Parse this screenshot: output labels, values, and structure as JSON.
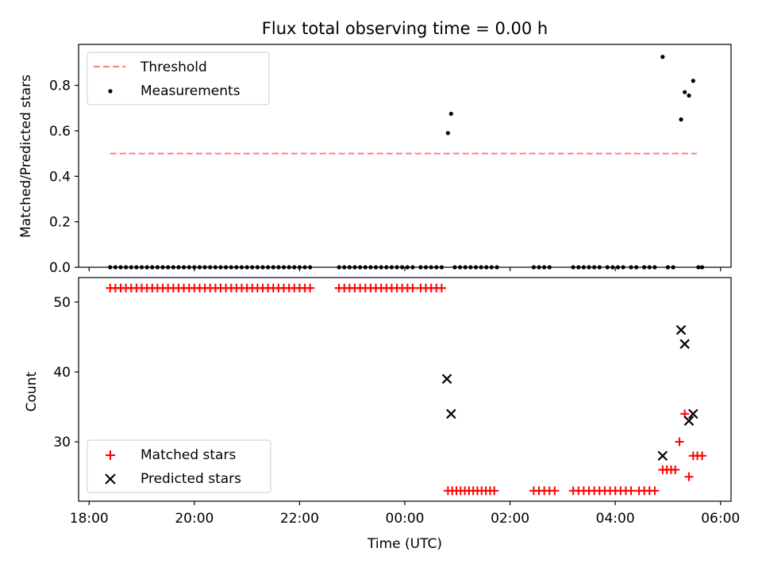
{
  "figure": {
    "title": "Flux total observing time = 0.00 h",
    "xlabel": "Time (UTC)",
    "xticks": [
      "18:00",
      "20:00",
      "22:00",
      "00:00",
      "02:00",
      "04:00",
      "06:00"
    ]
  },
  "colors": {
    "threshold": "#ff7f7f",
    "measurement": "#000000",
    "matched": "#ff0000",
    "predicted": "#000000"
  },
  "chart_data": [
    {
      "type": "scatter",
      "panel": "top",
      "x_unit": "hours since 18:00 UTC",
      "xlim": [
        -0.2,
        12.2
      ],
      "ylabel": "Matched/Predicted stars",
      "ylim": [
        0,
        0.98
      ],
      "yticks": [
        "0.0",
        "0.2",
        "0.4",
        "0.6",
        "0.8"
      ],
      "legend_position": "upper-left",
      "series": [
        {
          "name": "Threshold",
          "kind": "dashed-line",
          "x": [
            0.4,
            11.55
          ],
          "y": [
            0.5,
            0.5
          ]
        },
        {
          "name": "Measurements",
          "kind": "points",
          "x": [
            0.4,
            0.5,
            0.6,
            0.7,
            0.8,
            0.9,
            1.0,
            1.1,
            1.2,
            1.3,
            1.4,
            1.5,
            1.6,
            1.7,
            1.8,
            1.9,
            2.0,
            2.1,
            2.2,
            2.3,
            2.4,
            2.5,
            2.6,
            2.7,
            2.8,
            2.9,
            3.0,
            3.1,
            3.2,
            3.3,
            3.4,
            3.5,
            3.6,
            3.7,
            3.8,
            3.9,
            4.0,
            4.1,
            4.2,
            4.75,
            4.85,
            4.95,
            5.05,
            5.15,
            5.25,
            5.35,
            5.45,
            5.55,
            5.65,
            5.75,
            5.85,
            5.95,
            6.05,
            6.15,
            6.3,
            6.4,
            6.5,
            6.6,
            6.7,
            6.82,
            6.88,
            6.95,
            7.05,
            7.15,
            7.25,
            7.35,
            7.45,
            7.55,
            7.65,
            7.75,
            8.45,
            8.55,
            8.65,
            8.75,
            9.2,
            9.3,
            9.4,
            9.5,
            9.6,
            9.7,
            9.85,
            9.95,
            10.05,
            10.15,
            10.3,
            10.4,
            10.55,
            10.65,
            10.75,
            10.9,
            11.0,
            11.1,
            11.25,
            11.32,
            11.4,
            11.48,
            11.58,
            11.65
          ],
          "y": [
            0,
            0,
            0,
            0,
            0,
            0,
            0,
            0,
            0,
            0,
            0,
            0,
            0,
            0,
            0,
            0,
            0,
            0,
            0,
            0,
            0,
            0,
            0,
            0,
            0,
            0,
            0,
            0,
            0,
            0,
            0,
            0,
            0,
            0,
            0,
            0,
            0,
            0,
            0,
            0,
            0,
            0,
            0,
            0,
            0,
            0,
            0,
            0,
            0,
            0,
            0,
            0,
            0,
            0,
            0,
            0,
            0,
            0,
            0,
            0.59,
            0.675,
            0,
            0,
            0,
            0,
            0,
            0,
            0,
            0,
            0,
            0,
            0,
            0,
            0,
            0,
            0,
            0,
            0,
            0,
            0,
            0,
            0,
            0,
            0,
            0,
            0,
            0,
            0,
            0,
            0.925,
            0,
            0,
            0.65,
            0.77,
            0.755,
            0.82,
            0,
            0
          ]
        }
      ]
    },
    {
      "type": "scatter",
      "panel": "bottom",
      "x_unit": "hours since 18:00 UTC",
      "xlim": [
        -0.2,
        12.2
      ],
      "ylabel": "Count",
      "ylim": [
        21.5,
        53.5
      ],
      "yticks": [
        "30",
        "40",
        "50"
      ],
      "legend_position": "lower-left",
      "series": [
        {
          "name": "Matched stars",
          "marker": "plus",
          "x": [
            0.4,
            0.5,
            0.6,
            0.7,
            0.8,
            0.9,
            1.0,
            1.1,
            1.2,
            1.3,
            1.4,
            1.5,
            1.6,
            1.7,
            1.8,
            1.9,
            2.0,
            2.1,
            2.2,
            2.3,
            2.4,
            2.5,
            2.6,
            2.7,
            2.8,
            2.9,
            3.0,
            3.1,
            3.2,
            3.3,
            3.4,
            3.5,
            3.6,
            3.7,
            3.8,
            3.9,
            4.0,
            4.1,
            4.2,
            4.75,
            4.85,
            4.95,
            5.05,
            5.15,
            5.25,
            5.35,
            5.45,
            5.55,
            5.65,
            5.75,
            5.85,
            5.95,
            6.05,
            6.15,
            6.3,
            6.4,
            6.5,
            6.6,
            6.7,
            6.82,
            6.9,
            6.98,
            7.06,
            7.14,
            7.22,
            7.3,
            7.38,
            7.46,
            7.54,
            7.62,
            7.7,
            8.45,
            8.55,
            8.65,
            8.75,
            8.85,
            9.2,
            9.3,
            9.4,
            9.5,
            9.6,
            9.7,
            9.8,
            9.9,
            10.0,
            10.1,
            10.2,
            10.3,
            10.45,
            10.55,
            10.65,
            10.75,
            10.9,
            10.98,
            11.06,
            11.14,
            11.22,
            11.32,
            11.4,
            11.48,
            11.56,
            11.65
          ],
          "y": [
            52,
            52,
            52,
            52,
            52,
            52,
            52,
            52,
            52,
            52,
            52,
            52,
            52,
            52,
            52,
            52,
            52,
            52,
            52,
            52,
            52,
            52,
            52,
            52,
            52,
            52,
            52,
            52,
            52,
            52,
            52,
            52,
            52,
            52,
            52,
            52,
            52,
            52,
            52,
            52,
            52,
            52,
            52,
            52,
            52,
            52,
            52,
            52,
            52,
            52,
            52,
            52,
            52,
            52,
            52,
            52,
            52,
            52,
            52,
            23,
            23,
            23,
            23,
            23,
            23,
            23,
            23,
            23,
            23,
            23,
            23,
            23,
            23,
            23,
            23,
            23,
            23,
            23,
            23,
            23,
            23,
            23,
            23,
            23,
            23,
            23,
            23,
            23,
            23,
            23,
            23,
            23,
            26,
            26,
            26,
            26,
            30,
            34,
            25,
            28,
            28,
            28
          ]
        },
        {
          "name": "Predicted stars",
          "marker": "x",
          "x": [
            6.8,
            6.88,
            10.9,
            11.25,
            11.32,
            11.4,
            11.48
          ],
          "y": [
            39,
            34,
            28,
            46,
            44,
            33,
            34
          ]
        }
      ]
    }
  ]
}
